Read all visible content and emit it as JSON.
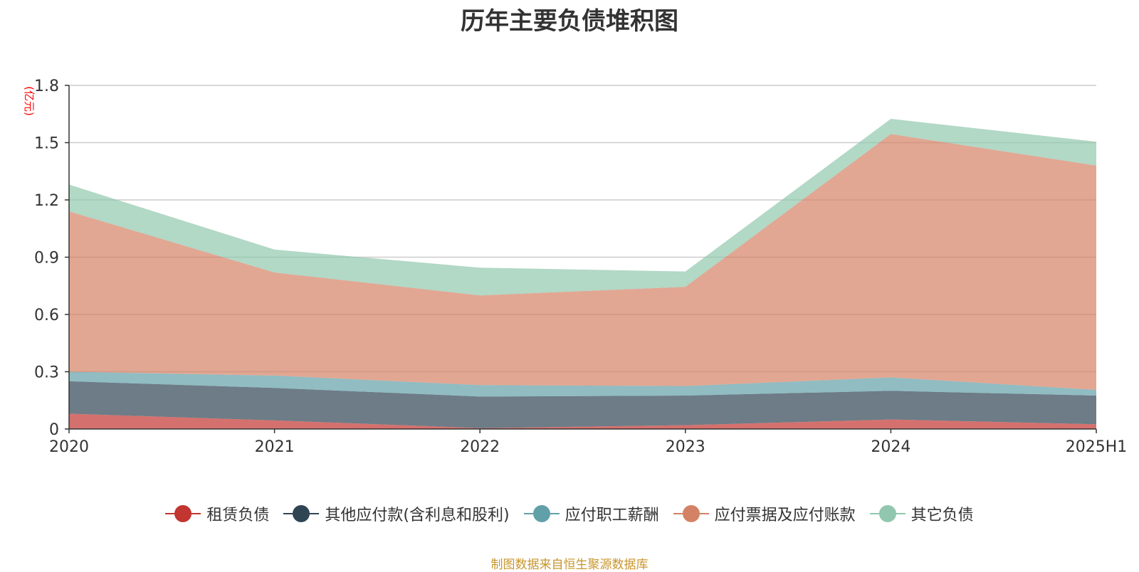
{
  "chart_data": {
    "type": "area",
    "stacked": true,
    "title": "历年主要负债堆积图",
    "unit_label": "(亿元)",
    "categories": [
      "2020",
      "2021",
      "2022",
      "2023",
      "2024",
      "2025H1"
    ],
    "y_ticks": [
      "0",
      "0.3",
      "0.6",
      "0.9",
      "1.2",
      "1.5",
      "1.8"
    ],
    "ylim": [
      0,
      1.8
    ],
    "grid": true,
    "legend_position": "bottom",
    "series": [
      {
        "name": "租赁负债",
        "color": "#c23531",
        "values": [
          0.08,
          0.045,
          0.005,
          0.02,
          0.05,
          0.025
        ]
      },
      {
        "name": "其他应付款(含利息和股利)",
        "color": "#2f4554",
        "values": [
          0.17,
          0.17,
          0.165,
          0.155,
          0.15,
          0.15
        ]
      },
      {
        "name": "应付职工薪酬",
        "color": "#61a0a8",
        "values": [
          0.05,
          0.065,
          0.06,
          0.05,
          0.07,
          0.03
        ]
      },
      {
        "name": "应付票据及应付账款",
        "color": "#d48265",
        "values": [
          0.84,
          0.54,
          0.47,
          0.52,
          1.275,
          1.175
        ]
      },
      {
        "name": "其它负债",
        "color": "#91c7ae",
        "values": [
          0.14,
          0.12,
          0.145,
          0.08,
          0.08,
          0.125
        ]
      }
    ]
  },
  "source_note": "制图数据来自恒生聚源数据库"
}
